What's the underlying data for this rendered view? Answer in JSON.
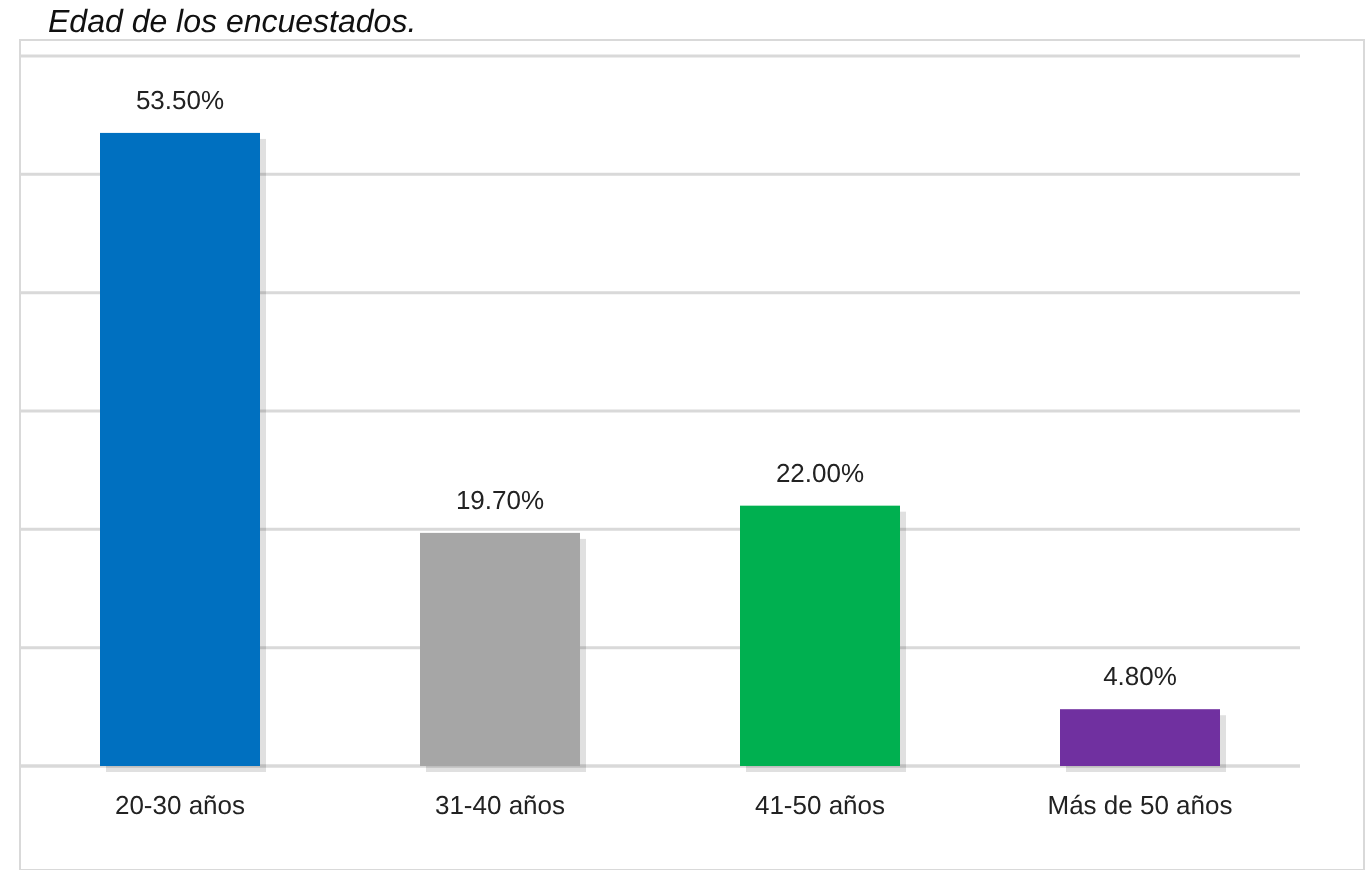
{
  "chart_data": {
    "type": "bar",
    "title": "Edad de los encuestados.",
    "categories": [
      "20-30 años",
      "31-40 años",
      "41-50 años",
      "Más de 50 años"
    ],
    "values": [
      53.5,
      19.7,
      22.0,
      4.8
    ],
    "colors": [
      "#0070c0",
      "#a6a6a6",
      "#00b050",
      "#7030a0"
    ],
    "value_labels": [
      "53.50%",
      "19.70%",
      "22.00%",
      "4.80%"
    ],
    "ylim": [
      0,
      60
    ],
    "yticks": [
      {
        "value": 0,
        "label": null
      },
      {
        "value": 10,
        "label": null
      },
      {
        "value": 20,
        "label": null
      },
      {
        "value": 30,
        "label": null
      },
      {
        "value": 40,
        "label": null
      },
      {
        "value": 50,
        "label": null
      },
      {
        "value": 60,
        "label": null
      }
    ],
    "tick_labels": "x",
    "grid": "y"
  }
}
